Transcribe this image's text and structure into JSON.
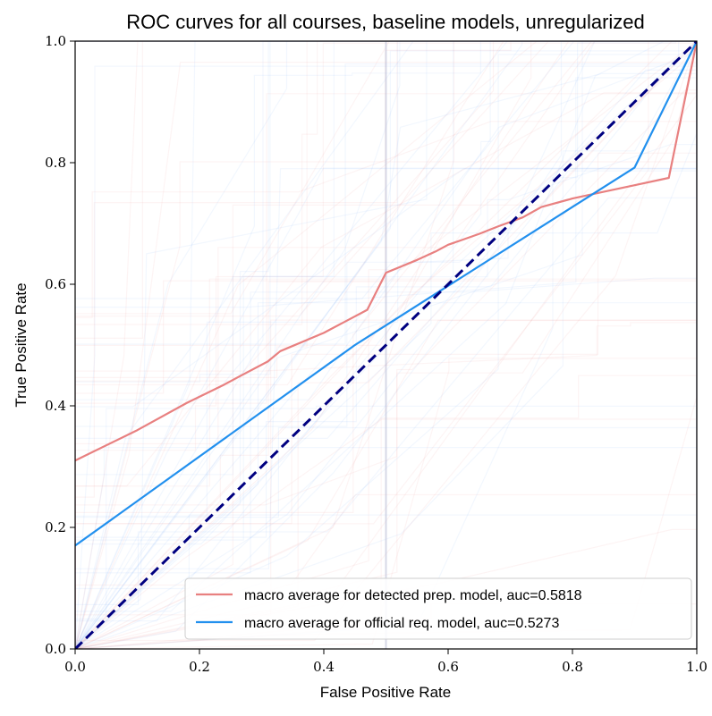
{
  "chart_data": {
    "type": "line",
    "title": "ROC curves for all courses, baseline models, unregularized",
    "xlabel": "False Positive Rate",
    "ylabel": "True Positive Rate",
    "xlim": [
      0.0,
      1.0
    ],
    "ylim": [
      0.0,
      1.0
    ],
    "x_ticks": [
      "0.0",
      "0.2",
      "0.4",
      "0.6",
      "0.8",
      "1.0"
    ],
    "y_ticks": [
      "0.0",
      "0.2",
      "0.4",
      "0.6",
      "0.8",
      "1.0"
    ],
    "grid": false,
    "legend_position": "lower-right",
    "series": [
      {
        "name": "macro average for detected prep. model, auc=0.5818",
        "color": "#e88080",
        "x": [
          0.0,
          0.1,
          0.18,
          0.24,
          0.26,
          0.31,
          0.33,
          0.4,
          0.47,
          0.5,
          0.55,
          0.58,
          0.6,
          0.62,
          0.65,
          0.68,
          0.72,
          0.75,
          0.8,
          0.85,
          0.9,
          0.955,
          1.0
        ],
        "y": [
          0.31,
          0.36,
          0.405,
          0.435,
          0.446,
          0.473,
          0.49,
          0.52,
          0.558,
          0.619,
          0.64,
          0.654,
          0.665,
          0.672,
          0.683,
          0.695,
          0.71,
          0.727,
          0.741,
          0.752,
          0.763,
          0.775,
          1.0
        ]
      },
      {
        "name": "macro average for official req. model, auc=0.5273",
        "color": "#2290ee",
        "x": [
          0.0,
          0.45,
          0.9,
          1.0
        ],
        "y": [
          0.17,
          0.5,
          0.792,
          1.0
        ]
      },
      {
        "name": "",
        "color": "#000080",
        "dashed": true,
        "x": [
          0.0,
          1.0
        ],
        "y": [
          0.0,
          1.0
        ]
      }
    ]
  }
}
